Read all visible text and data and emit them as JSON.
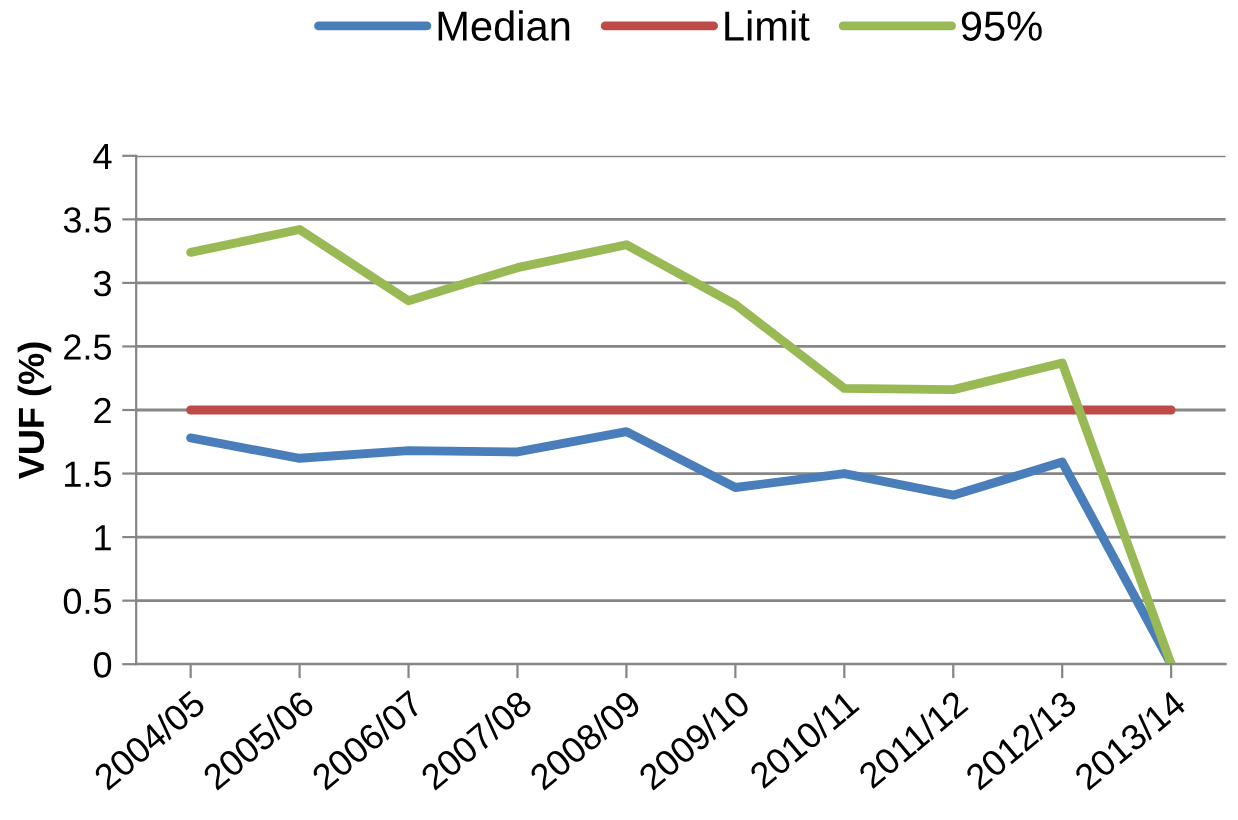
{
  "chart_data": {
    "type": "line",
    "ylabel": "VUF (%)",
    "categories": [
      "2004/05",
      "2005/06",
      "2006/07",
      "2007/08",
      "2008/09",
      "2009/10",
      "2010/11",
      "2011/12",
      "2012/13",
      "2013/14"
    ],
    "series": [
      {
        "name": "Median",
        "color": "#4a7ebb",
        "values": [
          1.78,
          1.62,
          1.68,
          1.67,
          1.83,
          1.39,
          1.5,
          1.33,
          1.59,
          0
        ]
      },
      {
        "name": "Limit",
        "color": "#be4b48",
        "values": [
          2,
          2,
          2,
          2,
          2,
          2,
          2,
          2,
          2,
          2
        ]
      },
      {
        "name": "95%",
        "color": "#98b954",
        "values": [
          3.24,
          3.42,
          2.86,
          3.12,
          3.3,
          2.83,
          2.17,
          2.16,
          2.37,
          0
        ]
      }
    ],
    "ylim": [
      0,
      4
    ],
    "yticks": [
      0,
      0.5,
      1,
      1.5,
      2,
      2.5,
      3,
      3.5,
      4
    ],
    "grid": "y",
    "legend": "top",
    "marker": "none",
    "line_style": "solid"
  }
}
